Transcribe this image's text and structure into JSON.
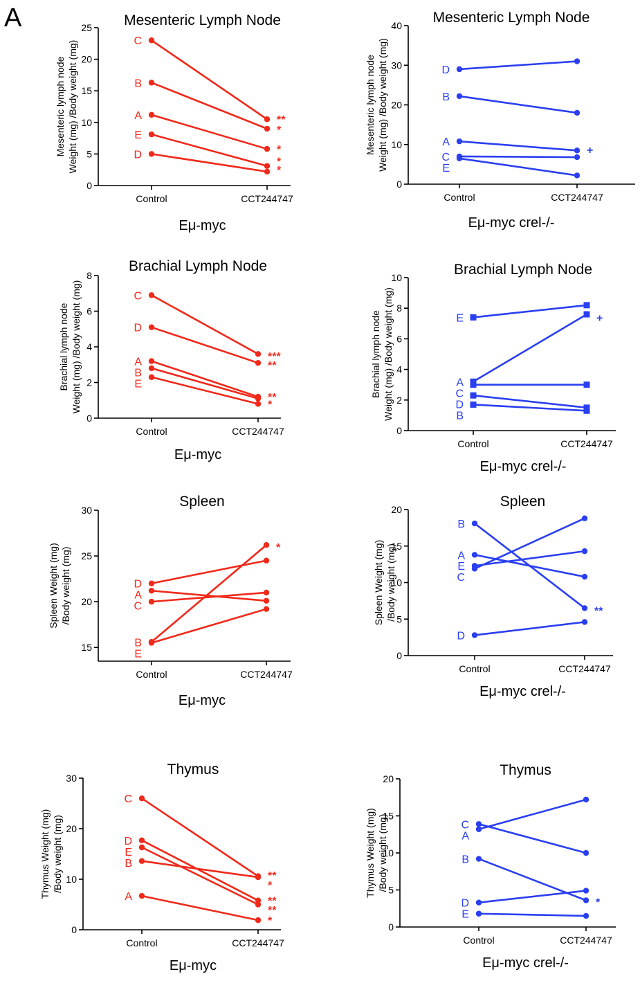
{
  "figure": {
    "panel_label": "A",
    "colors": {
      "emu_myc": "#f0291a",
      "crel_ko": "#2a3ff0"
    }
  },
  "chart_data": [
    {
      "type": "line",
      "title": "Mesenteric Lymph Node",
      "ylabel_lines": [
        "Mesenteric lymph node",
        "Weight (mg) /Body weight (mg)"
      ],
      "group_label": "Eμ-myc",
      "categories": [
        "Control",
        "CCT244747"
      ],
      "ylim": [
        0,
        25
      ],
      "yticks": [
        0,
        5,
        10,
        15,
        20,
        25
      ],
      "color": "#f0291a",
      "series": [
        {
          "name": "C",
          "marker": "circle",
          "values": [
            23.0,
            10.5
          ]
        },
        {
          "name": "B",
          "marker": "circle",
          "values": [
            16.3,
            9.0
          ]
        },
        {
          "name": "A",
          "marker": "circle",
          "values": [
            11.2,
            5.8
          ]
        },
        {
          "name": "E",
          "marker": "circle",
          "values": [
            8.1,
            3.1
          ]
        },
        {
          "name": "D",
          "marker": "circle",
          "values": [
            5.0,
            2.2
          ]
        }
      ],
      "significance": [
        {
          "label": "**",
          "y": 10.5
        },
        {
          "label": "*",
          "y": 8.9
        },
        {
          "label": "*",
          "y": 5.8
        },
        {
          "label": "*",
          "y": 3.9
        },
        {
          "label": "*",
          "y": 2.5
        }
      ]
    },
    {
      "type": "line",
      "title": "Mesenteric Lymph Node",
      "ylabel_lines": [
        "Mesenteric lymph node",
        "Weight (mg) /Body weight (mg)"
      ],
      "group_label": "Eμ-myc crel-/-",
      "categories": [
        "Control",
        "CCT244747"
      ],
      "ylim": [
        0,
        40
      ],
      "yticks": [
        0,
        10,
        20,
        30,
        40
      ],
      "color": "#2a3ff0",
      "series": [
        {
          "name": "D",
          "marker": "circle",
          "values": [
            29.0,
            31.0
          ]
        },
        {
          "name": "B",
          "marker": "circle",
          "values": [
            22.2,
            18.0
          ]
        },
        {
          "name": "A",
          "marker": "circle",
          "values": [
            10.8,
            8.5
          ]
        },
        {
          "name": "C",
          "marker": "circle",
          "values": [
            7.0,
            6.8
          ]
        },
        {
          "name": "E",
          "marker": "circle",
          "values": [
            6.5,
            2.2
          ]
        }
      ],
      "significance": [
        {
          "label": "+",
          "y": 8.7
        }
      ]
    },
    {
      "type": "line",
      "title": "Brachial Lymph Node",
      "ylabel_lines": [
        "Brachial lymph node",
        "Weight (mg) /Body weight (mg)"
      ],
      "group_label": "Eμ-myc",
      "categories": [
        "Control",
        "CCT244747"
      ],
      "ylim": [
        0,
        8
      ],
      "yticks": [
        0,
        2,
        4,
        6,
        8
      ],
      "color": "#f0291a",
      "series": [
        {
          "name": "C",
          "marker": "circle",
          "values": [
            6.9,
            3.6
          ]
        },
        {
          "name": "D",
          "marker": "circle",
          "values": [
            5.1,
            3.1
          ]
        },
        {
          "name": "A",
          "marker": "circle",
          "values": [
            3.2,
            1.2
          ]
        },
        {
          "name": "B",
          "marker": "circle",
          "values": [
            2.8,
            1.1
          ]
        },
        {
          "name": "E",
          "marker": "circle",
          "values": [
            2.3,
            0.8
          ]
        }
      ],
      "significance": [
        {
          "label": "***",
          "y": 3.5
        },
        {
          "label": "**",
          "y": 3.0
        },
        {
          "label": "**",
          "y": 1.2
        },
        {
          "label": "*",
          "y": 0.8
        }
      ]
    },
    {
      "type": "line",
      "title": "Brachial Lymph Node",
      "ylabel_lines": [
        "Brachial lymph node",
        "Weight (mg) /Body weight (mg)"
      ],
      "group_label": "Eμ-myc crel-/-",
      "categories": [
        "Control",
        "CCT244747"
      ],
      "ylim": [
        0,
        10
      ],
      "yticks": [
        0,
        2,
        4,
        6,
        8,
        10
      ],
      "color": "#2a3ff0",
      "series": [
        {
          "name": "E",
          "marker": "square",
          "values": [
            7.4,
            8.2
          ]
        },
        {
          "name": "A",
          "marker": "square",
          "values": [
            3.2,
            7.6
          ]
        },
        {
          "name": "C",
          "marker": "square",
          "values": [
            3.0,
            3.0
          ]
        },
        {
          "name": "D",
          "marker": "square",
          "values": [
            2.3,
            1.5
          ]
        },
        {
          "name": "B",
          "marker": "square",
          "values": [
            1.7,
            1.3
          ]
        }
      ],
      "significance": [
        {
          "label": "+",
          "y": 7.4
        }
      ]
    },
    {
      "type": "line",
      "title": "Spleen",
      "ylabel_lines": [
        "Spleen Weight (mg)",
        "/Body weight (mg)"
      ],
      "group_label": "Eμ-myc",
      "categories": [
        "Control",
        "CCT244747"
      ],
      "ylim": [
        13.5,
        30
      ],
      "yticks": [
        15,
        20,
        25,
        30
      ],
      "color": "#f0291a",
      "series": [
        {
          "name": "D",
          "marker": "circle",
          "values": [
            22.0,
            24.5
          ]
        },
        {
          "name": "A",
          "marker": "circle",
          "values": [
            21.2,
            20.1
          ]
        },
        {
          "name": "C",
          "marker": "circle",
          "values": [
            20.0,
            21.0
          ]
        },
        {
          "name": "B",
          "marker": "circle",
          "values": [
            15.6,
            26.2
          ]
        },
        {
          "name": "E",
          "marker": "circle",
          "values": [
            15.5,
            19.2
          ]
        }
      ],
      "significance": [
        {
          "label": "*",
          "y": 26.0
        }
      ]
    },
    {
      "type": "line",
      "title": "Spleen",
      "ylabel_lines": [
        "Spleen Weight (mg)",
        "/Body weight (mg)"
      ],
      "group_label": "Eμ-myc crel-/-",
      "categories": [
        "Control",
        "CCT244747"
      ],
      "ylim": [
        0,
        20
      ],
      "yticks": [
        0,
        5,
        10,
        15,
        20
      ],
      "color": "#2a3ff0",
      "series": [
        {
          "name": "B",
          "marker": "circle",
          "values": [
            18.1,
            6.5
          ]
        },
        {
          "name": "A",
          "marker": "circle",
          "values": [
            13.8,
            10.8
          ]
        },
        {
          "name": "E",
          "marker": "circle",
          "values": [
            12.3,
            14.3
          ]
        },
        {
          "name": "C",
          "marker": "circle",
          "values": [
            11.9,
            18.8
          ]
        },
        {
          "name": "D",
          "marker": "circle",
          "values": [
            2.8,
            4.6
          ]
        }
      ],
      "significance": [
        {
          "label": "**",
          "y": 6.2
        }
      ]
    },
    {
      "type": "line",
      "title": "Thymus",
      "ylabel_lines": [
        "Thymus Weight (mg)",
        "/Body weight (mg)"
      ],
      "group_label": "Eμ-myc",
      "categories": [
        "Control",
        "CCT244747"
      ],
      "ylim": [
        0,
        30
      ],
      "yticks": [
        0,
        10,
        20,
        30
      ],
      "color": "#f0291a",
      "series": [
        {
          "name": "C",
          "marker": "circle",
          "values": [
            26.0,
            10.6
          ]
        },
        {
          "name": "D",
          "marker": "circle",
          "values": [
            17.7,
            5.8
          ]
        },
        {
          "name": "E",
          "marker": "circle",
          "values": [
            16.3,
            5.0
          ]
        },
        {
          "name": "B",
          "marker": "circle",
          "values": [
            13.6,
            10.4
          ]
        },
        {
          "name": "A",
          "marker": "circle",
          "values": [
            6.7,
            1.9
          ]
        }
      ],
      "significance": [
        {
          "label": "**",
          "y": 10.8
        },
        {
          "label": "*",
          "y": 8.9
        },
        {
          "label": "**",
          "y": 5.8
        },
        {
          "label": "**",
          "y": 4.0
        },
        {
          "label": "*",
          "y": 1.9
        }
      ]
    },
    {
      "type": "line",
      "title": "Thymus",
      "ylabel_lines": [
        "Thymus Weight (mg)",
        "/Body weight (mg)"
      ],
      "group_label": "Eμ-myc crel-/-",
      "categories": [
        "Control",
        "CCT244747"
      ],
      "ylim": [
        0,
        20
      ],
      "yticks": [
        0,
        5,
        10,
        15,
        20
      ],
      "color": "#2a3ff0",
      "series": [
        {
          "name": "C",
          "marker": "circle",
          "values": [
            13.9,
            10.0
          ]
        },
        {
          "name": "A",
          "marker": "circle",
          "values": [
            13.2,
            17.2
          ]
        },
        {
          "name": "B",
          "marker": "circle",
          "values": [
            9.2,
            3.6
          ]
        },
        {
          "name": "D",
          "marker": "circle",
          "values": [
            3.3,
            4.9
          ]
        },
        {
          "name": "E",
          "marker": "circle",
          "values": [
            1.8,
            1.5
          ]
        }
      ],
      "significance": [
        {
          "label": "*",
          "y": 3.4
        }
      ]
    }
  ]
}
